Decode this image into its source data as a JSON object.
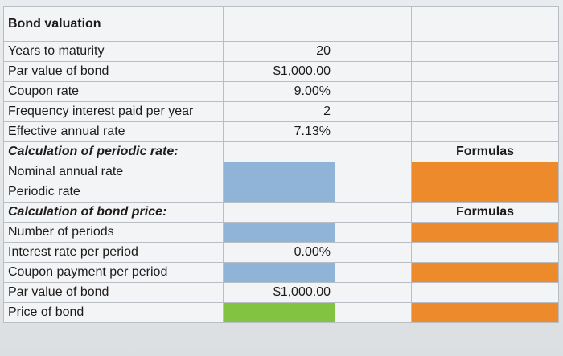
{
  "sheet": {
    "title": "Bond valuation",
    "rows": [
      {
        "label": "Years to maturity",
        "value": "20"
      },
      {
        "label": "Par value of bond",
        "value": "$1,000.00"
      },
      {
        "label": "Coupon rate",
        "value": "9.00%"
      },
      {
        "label": "Frequency interest paid per year",
        "value": "2"
      },
      {
        "label": "Effective annual rate",
        "value": "7.13%"
      }
    ],
    "section1": {
      "heading": "Calculation of periodic rate:",
      "formulas_label": "Formulas",
      "rows": [
        {
          "label": "Nominal annual rate",
          "value": ""
        },
        {
          "label": "Periodic rate",
          "value": ""
        }
      ]
    },
    "section2": {
      "heading": "Calculation of bond price:",
      "formulas_label": "Formulas",
      "rows": [
        {
          "label": "Number of periods",
          "value": ""
        },
        {
          "label": "Interest rate per period",
          "value": "0.00%"
        },
        {
          "label": "Coupon payment per period",
          "value": ""
        },
        {
          "label": "Par value of bond",
          "value": "$1,000.00"
        },
        {
          "label": "Price of bond",
          "value": ""
        }
      ]
    }
  },
  "colors": {
    "input_blue": "#8fb4d8",
    "formula_orange": "#ec8a2c",
    "result_green": "#82c341"
  }
}
